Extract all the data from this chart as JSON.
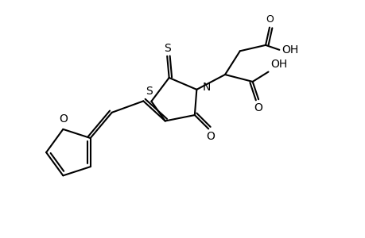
{
  "bg_color": "#ffffff",
  "line_color": "#000000",
  "bond_width": 1.5,
  "font_size": 10,
  "figsize": [
    4.6,
    3.0
  ],
  "dpi": 100,
  "xlim": [
    0,
    9.2
  ],
  "ylim": [
    0,
    6.0
  ]
}
